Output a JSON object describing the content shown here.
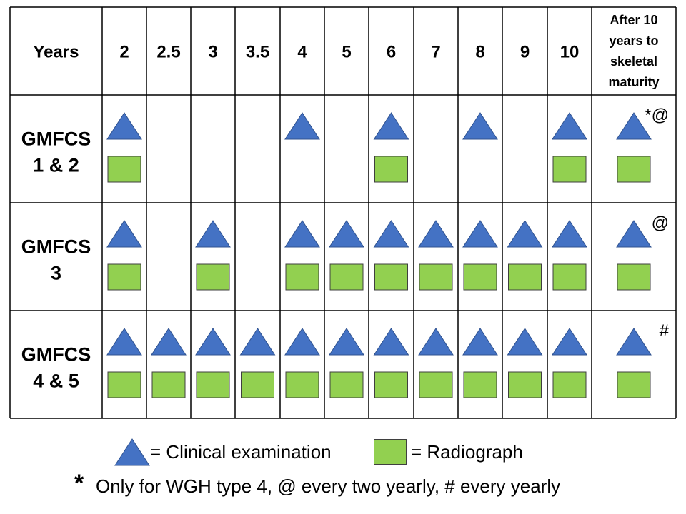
{
  "table": {
    "header_label": "Years",
    "columns": [
      "2",
      "2.5",
      "3",
      "3.5",
      "4",
      "5",
      "6",
      "7",
      "8",
      "9",
      "10"
    ],
    "last_column": [
      "After 10",
      "years to",
      "skeletal",
      "maturity"
    ],
    "rows": [
      {
        "label": [
          "GMFCS",
          "1 & 2"
        ],
        "exam": [
          1,
          0,
          0,
          0,
          1,
          0,
          1,
          0,
          1,
          0,
          1,
          1
        ],
        "xray": [
          1,
          0,
          0,
          0,
          0,
          0,
          1,
          0,
          0,
          0,
          1,
          1
        ],
        "note": "*@"
      },
      {
        "label": [
          "GMFCS",
          "3"
        ],
        "exam": [
          1,
          0,
          1,
          0,
          1,
          1,
          1,
          1,
          1,
          1,
          1,
          1
        ],
        "xray": [
          1,
          0,
          1,
          0,
          1,
          1,
          1,
          1,
          1,
          1,
          1,
          1
        ],
        "note": "@"
      },
      {
        "label": [
          "GMFCS",
          "4 & 5"
        ],
        "exam": [
          1,
          1,
          1,
          1,
          1,
          1,
          1,
          1,
          1,
          1,
          1,
          1
        ],
        "xray": [
          1,
          1,
          1,
          1,
          1,
          1,
          1,
          1,
          1,
          1,
          1,
          1
        ],
        "note": "#"
      }
    ]
  },
  "legend": {
    "exam_label": "= Clinical examination",
    "xray_label": "= Radiograph",
    "exam_color": "#4472c4",
    "xray_color": "#92d050"
  },
  "footnote": {
    "star": "*",
    "text": "Only for WGH type 4, @ every two yearly, # every yearly"
  }
}
